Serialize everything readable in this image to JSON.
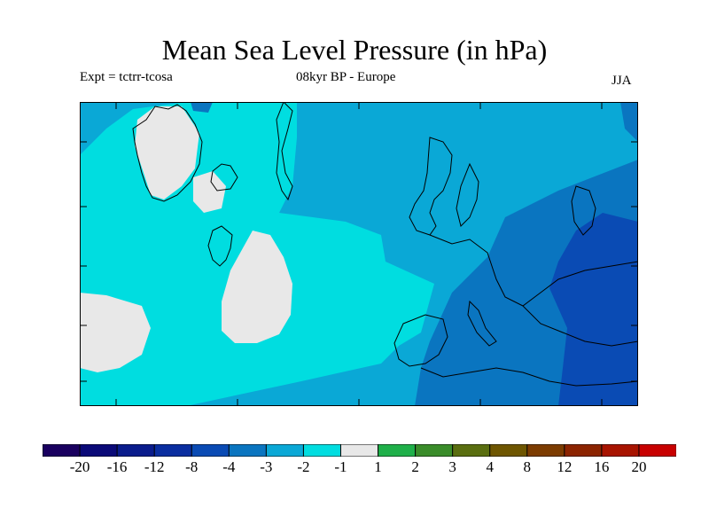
{
  "title": "Mean Sea Level Pressure (in hPa)",
  "experiment": "Expt = tctrr-tcosa",
  "period": "08kyr BP - Europe",
  "season": "JJA",
  "legend": {
    "colors": [
      "#1a0060",
      "#0b0a78",
      "#0a1c8c",
      "#0a2ea0",
      "#0a4bb4",
      "#0a75c0",
      "#0aa8d6",
      "#00dde0",
      "#e8e8e8",
      "#1fb04a",
      "#3a8c2a",
      "#5a6e10",
      "#6e5600",
      "#7c3c00",
      "#8c2400",
      "#a81400",
      "#c80000"
    ],
    "labels": [
      "-20",
      "-16",
      "-12",
      "-8",
      "-4",
      "-3",
      "-2",
      "-1",
      "1",
      "2",
      "3",
      "4",
      "8",
      "12",
      "16",
      "20"
    ]
  },
  "map_fields": {
    "ocean_east": "#0aa8d6",
    "ocean_mid": "#00dde0",
    "low_east": "#0a75c0",
    "low_core": "#0a4bb4",
    "near_zero": "#e8e8e8"
  }
}
